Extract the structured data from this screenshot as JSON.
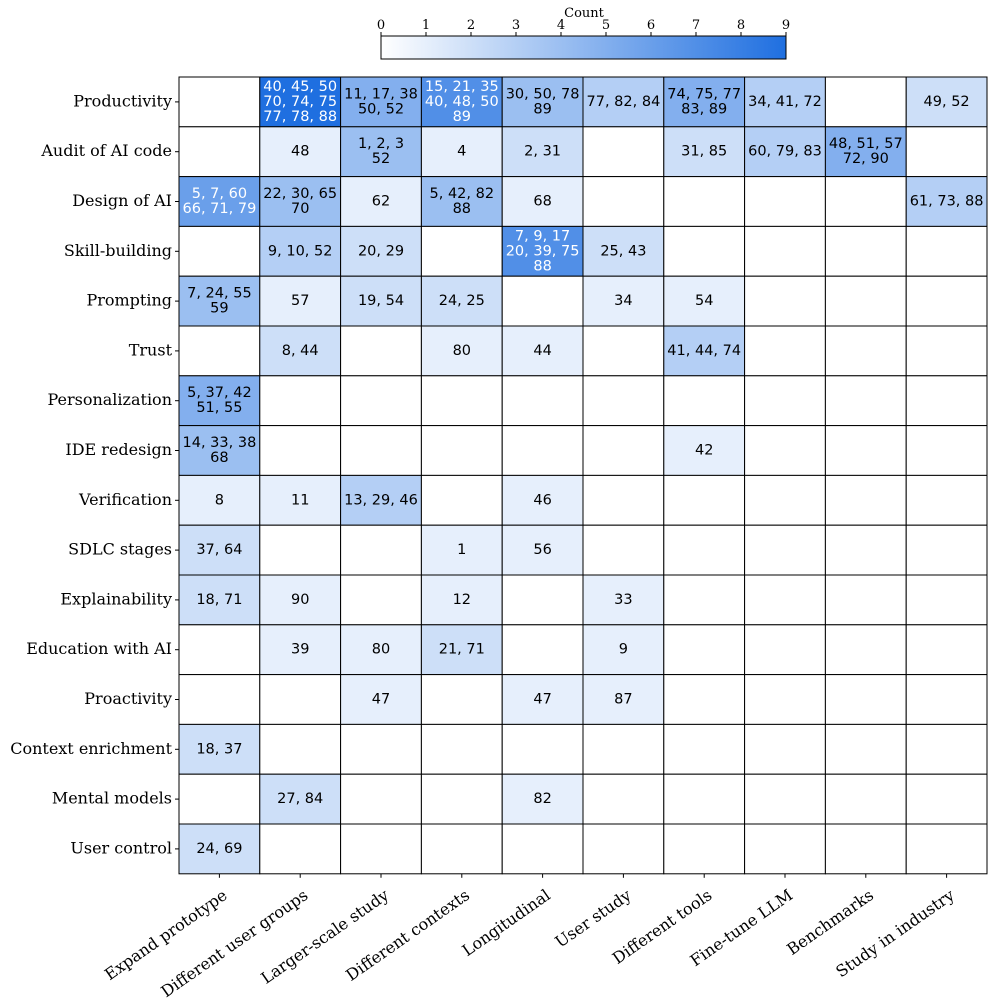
{
  "chart_data": {
    "type": "heatmap",
    "title": "",
    "xlabel": "",
    "ylabel": "",
    "colorbar": {
      "title": "Count",
      "min": 0,
      "max": 9,
      "ticks": [
        "0",
        "1",
        "2",
        "3",
        "4",
        "5",
        "6",
        "7",
        "8",
        "9"
      ],
      "color_low": "#ffffff",
      "color_high": "#1f6fe0"
    },
    "columns": [
      "Expand prototype",
      "Different user groups",
      "Larger-scale study",
      "Different contexts",
      "Longitudinal",
      "User study",
      "Different tools",
      "Fine-tune LLM",
      "Benchmarks",
      "Study in industry"
    ],
    "rows": [
      {
        "label": "Productivity",
        "cells": [
          null,
          {
            "count": 9,
            "lines": [
              "40, 45, 50",
              "70, 74, 75",
              "77, 78, 88"
            ]
          },
          {
            "count": 5,
            "lines": [
              "11, 17, 38",
              "50, 52"
            ]
          },
          {
            "count": 7,
            "lines": [
              "15, 21, 35",
              "40, 48, 50",
              "89"
            ]
          },
          {
            "count": 4,
            "lines": [
              "30, 50, 78",
              "89"
            ]
          },
          {
            "count": 3,
            "lines": [
              "77, 82, 84"
            ]
          },
          {
            "count": 5,
            "lines": [
              "74, 75, 77",
              "83, 89"
            ]
          },
          {
            "count": 3,
            "lines": [
              "34, 41, 72"
            ]
          },
          null,
          {
            "count": 2,
            "lines": [
              "49, 52"
            ]
          }
        ]
      },
      {
        "label": "Audit of AI code",
        "cells": [
          null,
          {
            "count": 1,
            "lines": [
              "48"
            ]
          },
          {
            "count": 4,
            "lines": [
              "1, 2, 3",
              "52"
            ]
          },
          {
            "count": 1,
            "lines": [
              "4"
            ]
          },
          {
            "count": 2,
            "lines": [
              "2, 31"
            ]
          },
          null,
          {
            "count": 2,
            "lines": [
              "31, 85"
            ]
          },
          {
            "count": 3,
            "lines": [
              "60, 79, 83"
            ]
          },
          {
            "count": 5,
            "lines": [
              "48, 51, 57",
              "72, 90"
            ]
          },
          null
        ]
      },
      {
        "label": "Design of AI",
        "cells": [
          {
            "count": 6,
            "lines": [
              "5, 7, 60",
              "66, 71, 79"
            ]
          },
          {
            "count": 4,
            "lines": [
              "22, 30, 65",
              "70"
            ]
          },
          {
            "count": 1,
            "lines": [
              "62"
            ]
          },
          {
            "count": 4,
            "lines": [
              "5, 42, 82",
              "88"
            ]
          },
          {
            "count": 1,
            "lines": [
              "68"
            ]
          },
          null,
          null,
          null,
          null,
          {
            "count": 3,
            "lines": [
              "61, 73, 88"
            ]
          }
        ]
      },
      {
        "label": "Skill-building",
        "cells": [
          null,
          {
            "count": 3,
            "lines": [
              "9, 10, 52"
            ]
          },
          {
            "count": 2,
            "lines": [
              "20, 29"
            ]
          },
          null,
          {
            "count": 7,
            "lines": [
              "7, 9, 17",
              "20, 39, 75",
              "88"
            ]
          },
          {
            "count": 2,
            "lines": [
              "25, 43"
            ]
          },
          null,
          null,
          null,
          null
        ]
      },
      {
        "label": "Prompting",
        "cells": [
          {
            "count": 4,
            "lines": [
              "7, 24, 55",
              "59"
            ]
          },
          {
            "count": 1,
            "lines": [
              "57"
            ]
          },
          {
            "count": 2,
            "lines": [
              "19, 54"
            ]
          },
          {
            "count": 2,
            "lines": [
              "24, 25"
            ]
          },
          null,
          {
            "count": 1,
            "lines": [
              "34"
            ]
          },
          {
            "count": 1,
            "lines": [
              "54"
            ]
          },
          null,
          null,
          null
        ]
      },
      {
        "label": "Trust",
        "cells": [
          null,
          {
            "count": 2,
            "lines": [
              "8, 44"
            ]
          },
          null,
          {
            "count": 1,
            "lines": [
              "80"
            ]
          },
          {
            "count": 1,
            "lines": [
              "44"
            ]
          },
          null,
          {
            "count": 3,
            "lines": [
              "41, 44, 74"
            ]
          },
          null,
          null,
          null
        ]
      },
      {
        "label": "Personalization",
        "cells": [
          {
            "count": 5,
            "lines": [
              "5, 37, 42",
              "51, 55"
            ]
          },
          null,
          null,
          null,
          null,
          null,
          null,
          null,
          null,
          null
        ]
      },
      {
        "label": "IDE redesign",
        "cells": [
          {
            "count": 4,
            "lines": [
              "14, 33, 38",
              "68"
            ]
          },
          null,
          null,
          null,
          null,
          null,
          {
            "count": 1,
            "lines": [
              "42"
            ]
          },
          null,
          null,
          null
        ]
      },
      {
        "label": "Verification",
        "cells": [
          {
            "count": 1,
            "lines": [
              "8"
            ]
          },
          {
            "count": 1,
            "lines": [
              "11"
            ]
          },
          {
            "count": 3,
            "lines": [
              "13, 29, 46"
            ]
          },
          null,
          {
            "count": 1,
            "lines": [
              "46"
            ]
          },
          null,
          null,
          null,
          null,
          null
        ]
      },
      {
        "label": "SDLC stages",
        "cells": [
          {
            "count": 2,
            "lines": [
              "37, 64"
            ]
          },
          null,
          null,
          {
            "count": 1,
            "lines": [
              "1"
            ]
          },
          {
            "count": 1,
            "lines": [
              "56"
            ]
          },
          null,
          null,
          null,
          null,
          null
        ]
      },
      {
        "label": "Explainability",
        "cells": [
          {
            "count": 2,
            "lines": [
              "18, 71"
            ]
          },
          {
            "count": 1,
            "lines": [
              "90"
            ]
          },
          null,
          {
            "count": 1,
            "lines": [
              "12"
            ]
          },
          null,
          {
            "count": 1,
            "lines": [
              "33"
            ]
          },
          null,
          null,
          null,
          null
        ]
      },
      {
        "label": "Education with AI",
        "cells": [
          null,
          {
            "count": 1,
            "lines": [
              "39"
            ]
          },
          {
            "count": 1,
            "lines": [
              "80"
            ]
          },
          {
            "count": 2,
            "lines": [
              "21, 71"
            ]
          },
          null,
          {
            "count": 1,
            "lines": [
              "9"
            ]
          },
          null,
          null,
          null,
          null
        ]
      },
      {
        "label": "Proactivity",
        "cells": [
          null,
          null,
          {
            "count": 1,
            "lines": [
              "47"
            ]
          },
          null,
          {
            "count": 1,
            "lines": [
              "47"
            ]
          },
          {
            "count": 1,
            "lines": [
              "87"
            ]
          },
          null,
          null,
          null,
          null
        ]
      },
      {
        "label": "Context enrichment",
        "cells": [
          {
            "count": 2,
            "lines": [
              "18, 37"
            ]
          },
          null,
          null,
          null,
          null,
          null,
          null,
          null,
          null,
          null
        ]
      },
      {
        "label": "Mental models",
        "cells": [
          null,
          {
            "count": 2,
            "lines": [
              "27, 84"
            ]
          },
          null,
          null,
          {
            "count": 1,
            "lines": [
              "82"
            ]
          },
          null,
          null,
          null,
          null,
          null
        ]
      },
      {
        "label": "User control",
        "cells": [
          {
            "count": 2,
            "lines": [
              "24, 69"
            ]
          },
          null,
          null,
          null,
          null,
          null,
          null,
          null,
          null,
          null
        ]
      }
    ]
  }
}
